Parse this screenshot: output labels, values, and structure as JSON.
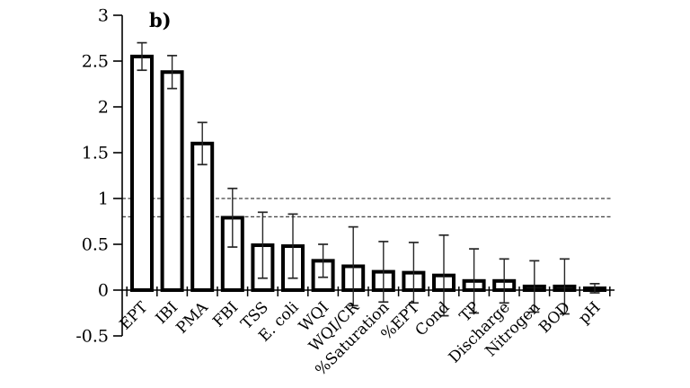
{
  "chart_data": {
    "type": "bar",
    "title": "b)",
    "xlabel": "",
    "ylabel": "",
    "legend": "none",
    "categories": [
      "EPT",
      "IBI",
      "PMA",
      "FBI",
      "TSS",
      "E. coli",
      "WQI",
      "WQI/CR",
      "%Saturation",
      "%EPT",
      "Cond",
      "TP",
      "Discharge",
      "Nitrogen",
      "BOD",
      "pH"
    ],
    "values": [
      2.55,
      2.38,
      1.6,
      0.79,
      0.49,
      0.48,
      0.32,
      0.26,
      0.2,
      0.19,
      0.16,
      0.1,
      0.1,
      0.04,
      0.04,
      0.02
    ],
    "errors": [
      0.15,
      0.18,
      0.23,
      0.32,
      0.36,
      0.35,
      0.18,
      0.43,
      0.33,
      0.33,
      0.44,
      0.35,
      0.24,
      0.28,
      0.3,
      0.05
    ],
    "error_bars": true,
    "reference_lines": [
      1.0,
      0.8
    ],
    "reference_line_style": "dashed",
    "y_ticks": [
      3,
      2.5,
      2,
      1.5,
      1,
      0.5,
      0,
      -0.5
    ],
    "y_tick_labels": [
      "3",
      "2.5",
      "2",
      "1.5",
      "1",
      "0.5",
      "0",
      "-0.5"
    ],
    "ylim": [
      -0.5,
      3
    ],
    "grid": "off",
    "colors": {
      "bar_fill": "#ffffff",
      "bar_stroke": "#000000",
      "axis": "#000000",
      "whisker": "#262626",
      "reference_line": "#404040",
      "background": "#ffffff"
    }
  }
}
